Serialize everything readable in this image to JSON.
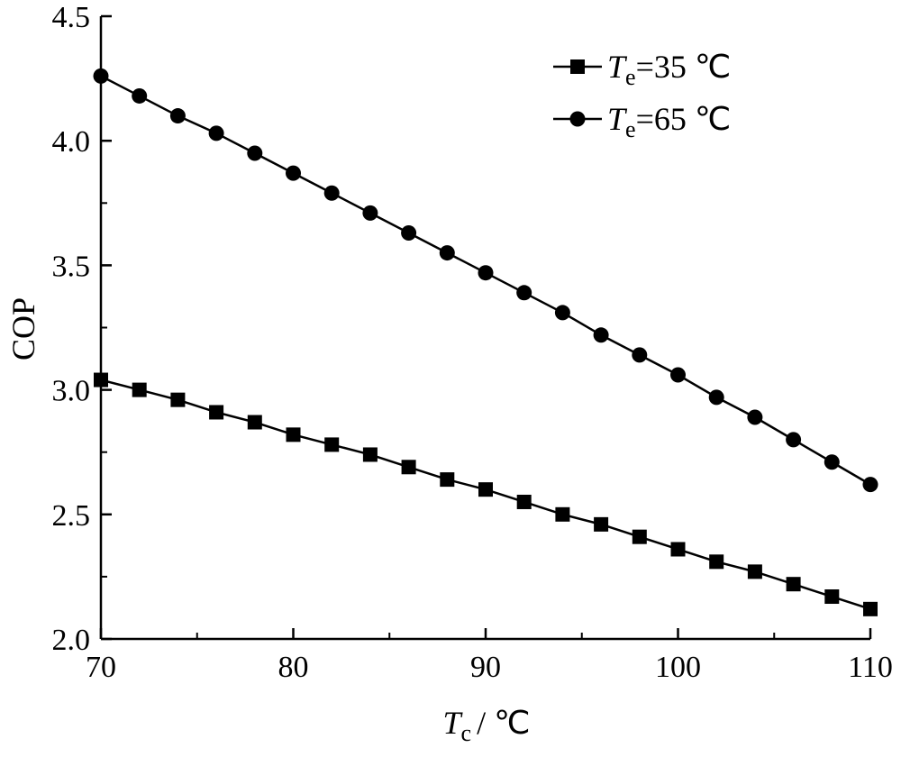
{
  "chart_data": {
    "type": "line",
    "xlabel": {
      "symbol": "T",
      "subscript": "c",
      "unit": "/ ℃"
    },
    "ylabel": "COP",
    "xlim": [
      70,
      110
    ],
    "ylim": [
      2.0,
      4.5
    ],
    "xticks": [
      70,
      80,
      90,
      100,
      110
    ],
    "xtick_labels": [
      "70",
      "80",
      "90",
      "100",
      "110"
    ],
    "yticks": [
      2.0,
      2.5,
      3.0,
      3.5,
      4.0,
      4.5
    ],
    "ytick_labels": [
      "2.0",
      "2.5",
      "3.0",
      "3.5",
      "4.0",
      "4.5"
    ],
    "grid": false,
    "legend_position": "top-right",
    "x": [
      70,
      72,
      74,
      76,
      78,
      80,
      82,
      84,
      86,
      88,
      90,
      92,
      94,
      96,
      98,
      100,
      102,
      104,
      106,
      108,
      110
    ],
    "series": [
      {
        "legend": {
          "symbol": "T",
          "subscript": "e",
          "text": "=35 ℃"
        },
        "marker": "square",
        "color": "#000000",
        "values": [
          3.04,
          3.0,
          2.96,
          2.91,
          2.87,
          2.82,
          2.78,
          2.74,
          2.69,
          2.64,
          2.6,
          2.55,
          2.5,
          2.46,
          2.41,
          2.36,
          2.31,
          2.27,
          2.22,
          2.17,
          2.12
        ]
      },
      {
        "legend": {
          "symbol": "T",
          "subscript": "e",
          "text": "=65 ℃"
        },
        "marker": "circle",
        "color": "#000000",
        "values": [
          4.26,
          4.18,
          4.1,
          4.03,
          3.95,
          3.87,
          3.79,
          3.71,
          3.63,
          3.55,
          3.47,
          3.39,
          3.31,
          3.22,
          3.14,
          3.06,
          2.97,
          2.89,
          2.8,
          2.71,
          2.62
        ]
      }
    ]
  }
}
